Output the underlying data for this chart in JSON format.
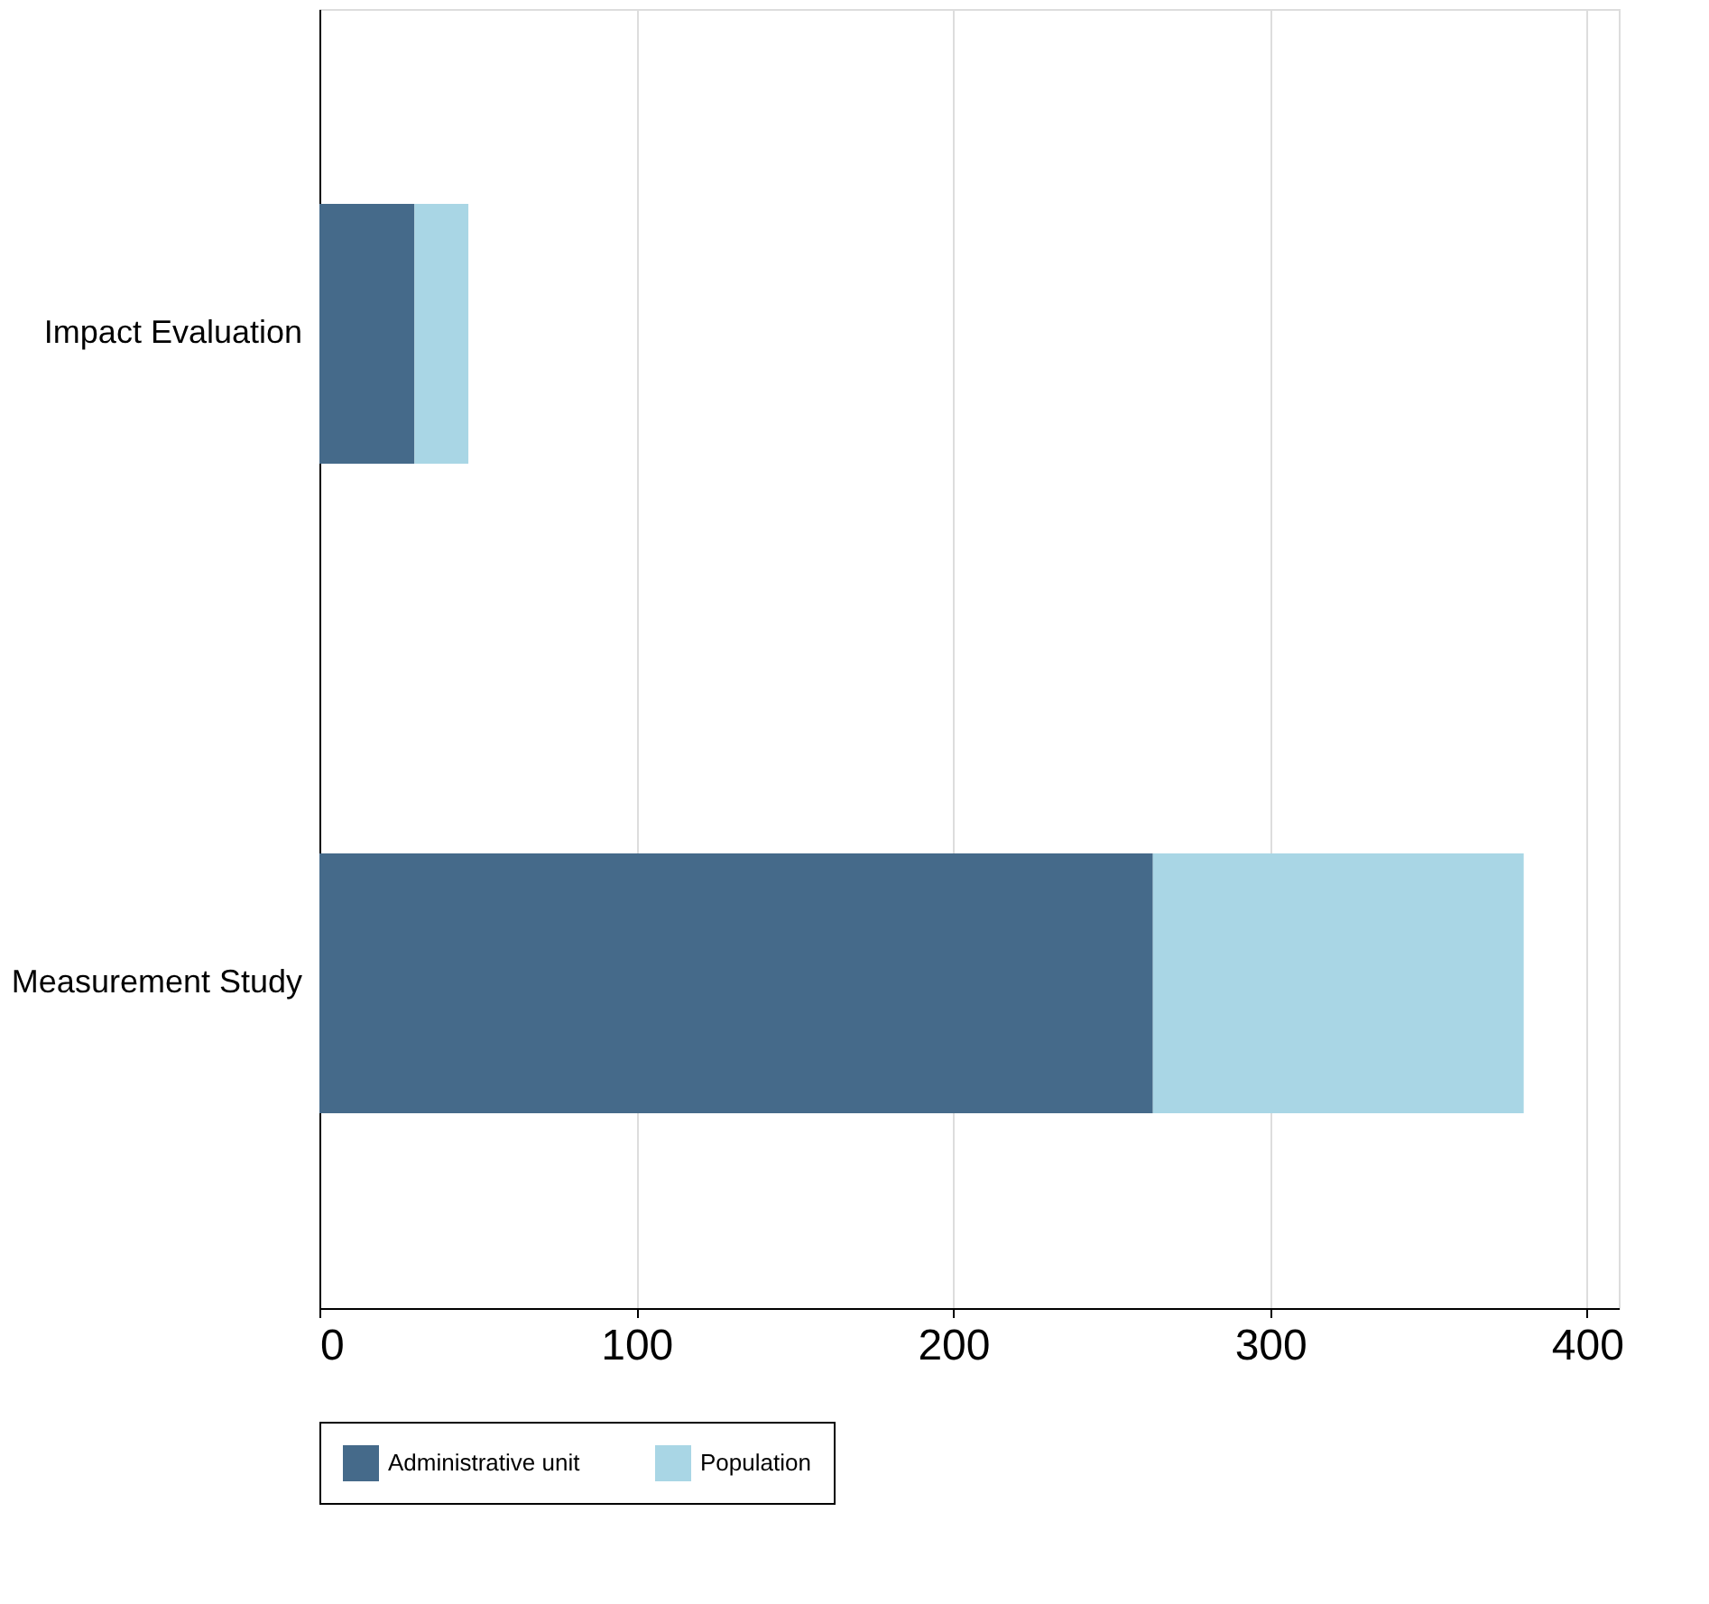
{
  "chart_data": {
    "type": "bar",
    "orientation": "horizontal",
    "stacked": true,
    "categories": [
      "Impact Evaluation",
      "Measurement Study"
    ],
    "series": [
      {
        "name": "Administrative unit",
        "color": "#456a8a",
        "values": [
          30,
          263
        ]
      },
      {
        "name": "Population",
        "color": "#a9d6e5",
        "values": [
          17,
          117
        ]
      }
    ],
    "xlim": [
      0,
      410
    ],
    "xticks": [
      0,
      100,
      200,
      300,
      400
    ],
    "grid": "x",
    "legend": "bottom"
  }
}
